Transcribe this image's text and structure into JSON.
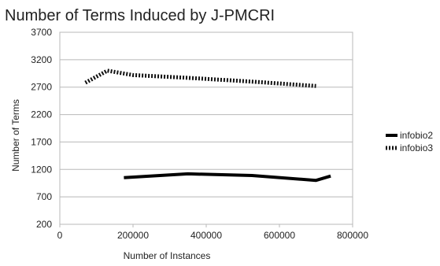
{
  "chart_data": {
    "type": "line",
    "title": "Number of Terms Induced by J-PMCRI",
    "xlabel": "Number of Instances",
    "ylabel": "Number of Terms",
    "xlim": [
      0,
      800000
    ],
    "ylim": [
      200,
      3700
    ],
    "x_ticks": [
      0,
      200000,
      400000,
      600000,
      800000
    ],
    "x_tick_labels": [
      "0",
      "200000",
      "400000",
      "600000",
      "800000"
    ],
    "y_ticks": [
      200,
      700,
      1200,
      1700,
      2200,
      2700,
      3200,
      3700
    ],
    "y_tick_labels": [
      "200",
      "700",
      "1200",
      "1700",
      "2200",
      "2700",
      "3200",
      "3700"
    ],
    "grid": "horizontal",
    "legend_position": "right",
    "series": [
      {
        "name": "infobio2",
        "color": "#000000",
        "style": "solid",
        "points": [
          {
            "x": 175000,
            "y": 1050
          },
          {
            "x": 350000,
            "y": 1120
          },
          {
            "x": 525000,
            "y": 1090
          },
          {
            "x": 700000,
            "y": 1000
          },
          {
            "x": 740000,
            "y": 1080
          }
        ]
      },
      {
        "name": "infobio3",
        "color": "#111111",
        "style": "dotted",
        "points": [
          {
            "x": 70000,
            "y": 2780
          },
          {
            "x": 130000,
            "y": 3000
          },
          {
            "x": 200000,
            "y": 2920
          },
          {
            "x": 350000,
            "y": 2870
          },
          {
            "x": 525000,
            "y": 2800
          },
          {
            "x": 700000,
            "y": 2720
          }
        ]
      }
    ]
  }
}
